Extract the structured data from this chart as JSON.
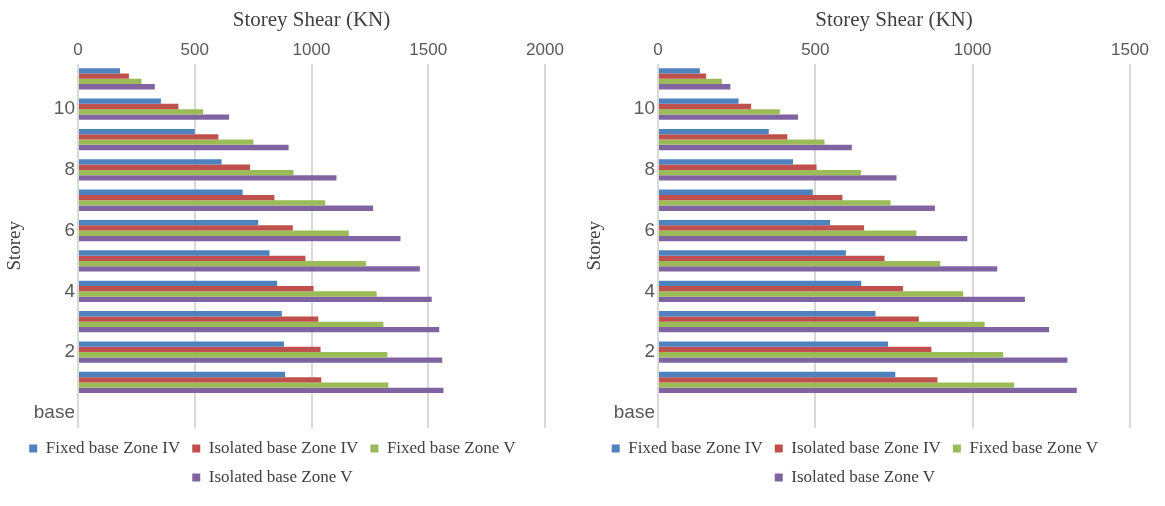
{
  "chart_data": [
    {
      "type": "bar",
      "orientation": "horizontal",
      "xlabel": "Storey Shear (KN)",
      "ylabel": "Storey",
      "categories": [
        null,
        "10",
        null,
        "8",
        null,
        "6",
        null,
        "4",
        null,
        "2",
        null,
        "base"
      ],
      "series": [
        {
          "name": "Fixed base Zone IV",
          "color": "#4f81bd",
          "values": [
            180,
            355,
            500,
            615,
            705,
            772,
            820,
            853,
            873,
            882,
            887,
            null
          ]
        },
        {
          "name": "Isolated base Zone IV",
          "color": "#c0504d",
          "values": [
            218,
            430,
            601,
            737,
            841,
            920,
            974,
            1009,
            1029,
            1039,
            1042,
            null
          ]
        },
        {
          "name": "Fixed base Zone V",
          "color": "#9bbb59",
          "values": [
            272,
            536,
            751,
            923,
            1059,
            1160,
            1233,
            1279,
            1308,
            1325,
            1329,
            null
          ]
        },
        {
          "name": "Isolated base Zone V",
          "color": "#8064a2",
          "values": [
            329,
            647,
            902,
            1107,
            1264,
            1381,
            1464,
            1515,
            1547,
            1560,
            1565,
            null
          ]
        }
      ],
      "xlim": [
        0,
        2000
      ],
      "xticks": [
        0,
        500,
        1000,
        1500,
        2000
      ],
      "grid": "x",
      "legend": "bottom"
    },
    {
      "type": "bar",
      "orientation": "horizontal",
      "xlabel": "Storey Shear (KN)",
      "ylabel": "Storey",
      "categories": [
        null,
        "10",
        null,
        "8",
        null,
        "6",
        null,
        "4",
        null,
        "2",
        null,
        "base"
      ],
      "series": [
        {
          "name": "Fixed base Zone IV",
          "color": "#4f81bd",
          "values": [
            133,
            256,
            352,
            429,
            492,
            547,
            597,
            646,
            691,
            731,
            754,
            null
          ]
        },
        {
          "name": "Isolated base Zone IV",
          "color": "#c0504d",
          "values": [
            153,
            296,
            411,
            504,
            586,
            655,
            720,
            779,
            829,
            869,
            888,
            null
          ]
        },
        {
          "name": "Fixed base Zone V",
          "color": "#9bbb59",
          "values": [
            203,
            387,
            529,
            645,
            739,
            821,
            897,
            970,
            1038,
            1097,
            1132,
            null
          ]
        },
        {
          "name": "Isolated base Zone V",
          "color": "#8064a2",
          "values": [
            230,
            445,
            616,
            758,
            880,
            983,
            1078,
            1166,
            1243,
            1301,
            1331,
            null
          ]
        }
      ],
      "xlim": [
        0,
        1500
      ],
      "xticks": [
        0,
        500,
        1000,
        1500
      ],
      "grid": "x",
      "legend": "bottom"
    }
  ]
}
